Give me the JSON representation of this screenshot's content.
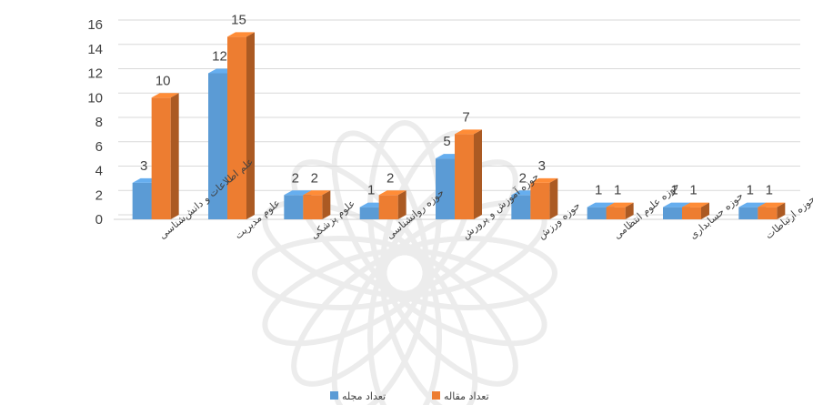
{
  "chart_data": {
    "type": "bar",
    "categories": [
      "علم اطلاعات و دانش‌شناسی",
      "علوم مدیریت",
      "علوم پزشکی",
      "حوزه روانشناسی",
      "حوزه آموزش و پرورش",
      "حوزه ورزش",
      "حوزه علوم انتظامی",
      "حوزه حسابداری",
      "حوزه ارتباطات"
    ],
    "series": [
      {
        "name": "تعداد مجله",
        "values": [
          3,
          12,
          2,
          1,
          5,
          2,
          1,
          1,
          1
        ]
      },
      {
        "name": "تعداد مقاله",
        "values": [
          10,
          15,
          2,
          2,
          7,
          3,
          1,
          1,
          1
        ]
      }
    ],
    "ylim": [
      0,
      16
    ],
    "yticks": [
      "0",
      "2",
      "4",
      "6",
      "8",
      "10",
      "12",
      "14",
      "16"
    ],
    "grid": true,
    "legend_position": "bottom",
    "colors": {
      "series1": "#5B9BD5",
      "series2": "#ED7D31"
    }
  }
}
